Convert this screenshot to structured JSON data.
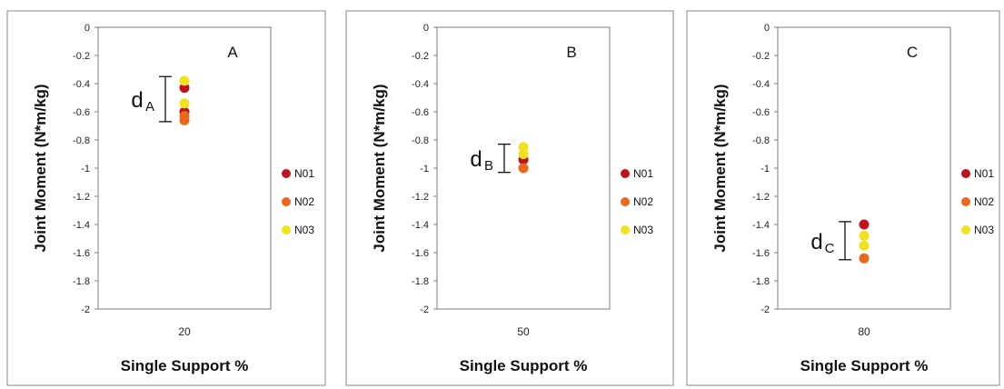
{
  "chart_data": [
    {
      "type": "scatter",
      "panel_label": "A",
      "xlabel": "Single Support %",
      "ylabel": "Joint Moment (N*m/kg)",
      "ylim": [
        -2,
        0
      ],
      "yticks": [
        "0",
        "-0.2",
        "-0.4",
        "-0.6",
        "-0.8",
        "-1",
        "-1.2",
        "-1.4",
        "-1.6",
        "-1.8",
        "-2"
      ],
      "categories": [
        "20"
      ],
      "series": [
        {
          "name": "N01",
          "color": "#c0141c",
          "values": [
            -0.43,
            -0.6
          ]
        },
        {
          "name": "N02",
          "color": "#e8691e",
          "values": [
            -0.63,
            -0.66
          ]
        },
        {
          "name": "N03",
          "color": "#f0e21e",
          "values": [
            -0.38,
            -0.54
          ]
        }
      ],
      "annotation": {
        "label": "d",
        "subscript": "A",
        "from": -0.35,
        "to": -0.67
      },
      "legend": "right"
    },
    {
      "type": "scatter",
      "panel_label": "B",
      "xlabel": "Single Support %",
      "ylabel": "Joint Moment (N*m/kg)",
      "ylim": [
        -2,
        0
      ],
      "yticks": [
        "0",
        "-0.2",
        "-0.4",
        "-0.6",
        "-0.8",
        "-1",
        "-1.2",
        "-1.4",
        "-1.6",
        "-1.8",
        "-2"
      ],
      "categories": [
        "50"
      ],
      "series": [
        {
          "name": "N01",
          "color": "#c0141c",
          "values": [
            -0.94
          ]
        },
        {
          "name": "N02",
          "color": "#e8691e",
          "values": [
            -1.0
          ]
        },
        {
          "name": "N03",
          "color": "#f0e21e",
          "values": [
            -0.85,
            -0.9
          ]
        }
      ],
      "annotation": {
        "label": "d",
        "subscript": "B",
        "from": -0.83,
        "to": -1.03
      },
      "legend": "right"
    },
    {
      "type": "scatter",
      "panel_label": "C",
      "xlabel": "Single Support %",
      "ylabel": "Joint Moment (N*m/kg)",
      "ylim": [
        -2,
        0
      ],
      "yticks": [
        "0",
        "-0.2",
        "-0.4",
        "-0.6",
        "-0.8",
        "-1",
        "-1.2",
        "-1.4",
        "-1.6",
        "-1.8",
        "-2"
      ],
      "categories": [
        "80"
      ],
      "series": [
        {
          "name": "N01",
          "color": "#c0141c",
          "values": [
            -1.4
          ]
        },
        {
          "name": "N02",
          "color": "#e8691e",
          "values": [
            -1.64
          ]
        },
        {
          "name": "N03",
          "color": "#f0e21e",
          "values": [
            -1.48,
            -1.55
          ]
        }
      ],
      "annotation": {
        "label": "d",
        "subscript": "C",
        "from": -1.38,
        "to": -1.65
      },
      "legend": "right"
    }
  ]
}
